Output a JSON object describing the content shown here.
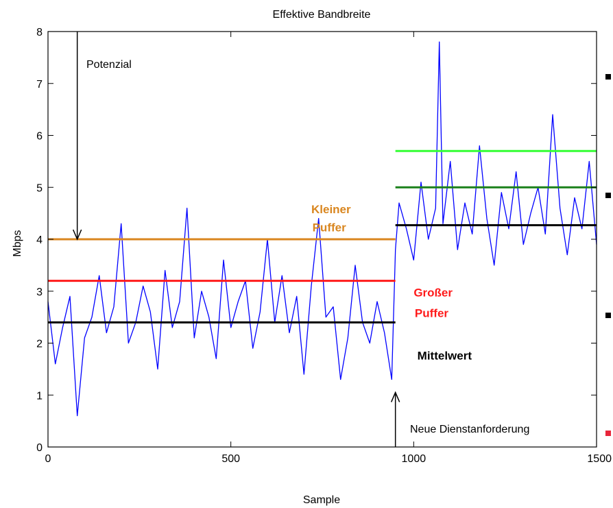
{
  "chart_data": {
    "type": "line",
    "title": "Effektive Bandbreite",
    "xlabel": "Sample",
    "ylabel": "Mbps",
    "xlim": [
      0,
      1500
    ],
    "ylim": [
      0,
      8
    ],
    "xticks": [
      "0",
      "500",
      "1000",
      "1500"
    ],
    "yticks": [
      "0",
      "1",
      "2",
      "3",
      "4",
      "5",
      "6",
      "7",
      "8"
    ],
    "grid": false,
    "series": [
      {
        "color": "#0000ff",
        "x": [
          0,
          20,
          40,
          60,
          80,
          100,
          120,
          140,
          160,
          180,
          200,
          220,
          240,
          260,
          280,
          300,
          320,
          340,
          360,
          380,
          400,
          420,
          440,
          460,
          480,
          500,
          520,
          540,
          560,
          580,
          600,
          620,
          640,
          660,
          680,
          700,
          720,
          740,
          760,
          780,
          800,
          820,
          840,
          860,
          880,
          900,
          920,
          940,
          950,
          960,
          980,
          1000,
          1020,
          1040,
          1060,
          1070,
          1080,
          1100,
          1120,
          1140,
          1160,
          1180,
          1200,
          1220,
          1240,
          1260,
          1280,
          1300,
          1320,
          1340,
          1360,
          1380,
          1400,
          1420,
          1440,
          1460,
          1480,
          1500
        ],
        "y": [
          2.8,
          1.6,
          2.3,
          2.9,
          0.6,
          2.1,
          2.5,
          3.3,
          2.2,
          2.7,
          4.3,
          2.0,
          2.4,
          3.1,
          2.6,
          1.5,
          3.4,
          2.3,
          2.8,
          4.6,
          2.1,
          3.0,
          2.5,
          1.7,
          3.6,
          2.3,
          2.8,
          3.2,
          1.9,
          2.6,
          4.0,
          2.4,
          3.3,
          2.2,
          2.9,
          1.4,
          3.1,
          4.4,
          2.5,
          2.7,
          1.3,
          2.1,
          3.5,
          2.4,
          2.0,
          2.8,
          2.2,
          1.3,
          3.8,
          4.7,
          4.2,
          3.6,
          5.1,
          4.0,
          4.6,
          7.8,
          4.3,
          5.5,
          3.8,
          4.7,
          4.1,
          5.8,
          4.4,
          3.5,
          4.9,
          4.2,
          5.3,
          3.9,
          4.5,
          5.0,
          4.1,
          6.4,
          4.6,
          3.7,
          4.8,
          4.2,
          5.5,
          3.9
        ]
      }
    ],
    "reference_lines": [
      {
        "color": "#d9861f",
        "y": 4.0,
        "x": [
          0,
          950
        ]
      },
      {
        "color": "#ff1a1a",
        "y": 3.2,
        "x": [
          0,
          950
        ]
      },
      {
        "color": "#000000",
        "y": 2.4,
        "x": [
          0,
          950
        ]
      },
      {
        "color": "#33ff33",
        "y": 5.7,
        "x": [
          950,
          1500
        ]
      },
      {
        "color": "#1a801a",
        "y": 5.0,
        "x": [
          950,
          1500
        ]
      },
      {
        "color": "#000000",
        "y": 4.27,
        "x": [
          950,
          1500
        ]
      }
    ],
    "annotations": [
      {
        "text": "Potenzial",
        "x": 105,
        "y": 7.3,
        "color": "#000000",
        "bold": false
      },
      {
        "text": "Kleiner",
        "x": 720,
        "y": 4.5,
        "color": "#d9861f",
        "bold": true
      },
      {
        "text": "Puffer",
        "x": 723,
        "y": 4.15,
        "color": "#d9861f",
        "bold": true
      },
      {
        "text": "Großer",
        "x": 1000,
        "y": 2.9,
        "color": "#ff1a1a",
        "bold": true
      },
      {
        "text": "Puffer",
        "x": 1003,
        "y": 2.5,
        "color": "#ff1a1a",
        "bold": true
      },
      {
        "text": "Mittelwert",
        "x": 1010,
        "y": 1.68,
        "color": "#000000",
        "bold": true
      },
      {
        "text": "Neue Dienstanforderung",
        "x": 990,
        "y": 0.28,
        "color": "#000000",
        "bold": false
      }
    ],
    "arrows": [
      {
        "x": 80,
        "from": 8.0,
        "to": 4.0
      },
      {
        "x": 950,
        "from": 0.0,
        "to": 1.05
      }
    ]
  }
}
